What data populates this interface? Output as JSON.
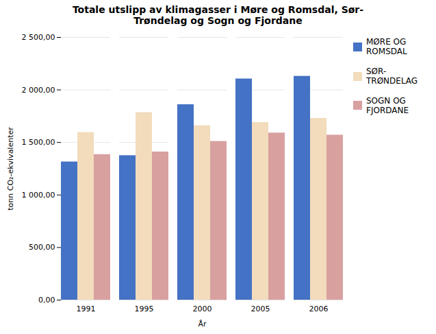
{
  "chart_data": {
    "type": "bar",
    "title": "Totale utslipp av klimagasser i Møre og Romsdal, Sør-\nTrøndelag og Sogn og Fjordane",
    "xlabel": "År",
    "ylabel": "tonn CO₂-ekvivalenter",
    "categories": [
      "1991",
      "1995",
      "2000",
      "2005",
      "2006"
    ],
    "series": [
      {
        "name": "MØRE OG\nROMSDAL",
        "color": "#4472C4",
        "values": [
          1315,
          1375,
          1860,
          2105,
          2130
        ]
      },
      {
        "name": "SØR-\nTRØNDELAG",
        "color": "#F2DCBC",
        "values": [
          1595,
          1785,
          1660,
          1690,
          1730
        ]
      },
      {
        "name": "SOGN OG\nFJORDANE",
        "color": "#D9A0A0",
        "values": [
          1385,
          1410,
          1510,
          1590,
          1570
        ]
      }
    ],
    "ylim": [
      0,
      2500
    ],
    "yticks": [
      {
        "value": 0,
        "label": "0,00"
      },
      {
        "value": 500,
        "label": "500,00"
      },
      {
        "value": 1000,
        "label": "1 000,00"
      },
      {
        "value": 1500,
        "label": "1 500,00"
      },
      {
        "value": 2000,
        "label": "2 000,00"
      },
      {
        "value": 2500,
        "label": "2 500,00"
      }
    ],
    "grid": true,
    "legend": "right"
  }
}
